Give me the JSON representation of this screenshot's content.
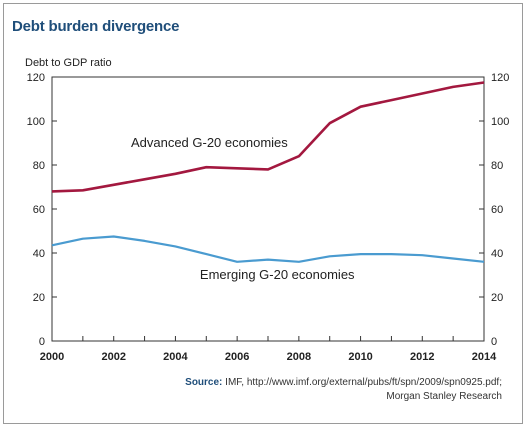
{
  "title": "Debt burden divergence",
  "source_label": "Source:",
  "source_lines": [
    "IMF, http://www.imf.org/external/pubs/ft/spn/2009/spn0925.pdf;",
    "Morgan Stanley Research"
  ],
  "chart_data": {
    "type": "line",
    "title": "Debt burden divergence",
    "ylabel": "Debt to GDP ratio",
    "xlabel": "",
    "xlim": [
      2000,
      2014
    ],
    "ylim": [
      0,
      120
    ],
    "x_ticks": [
      2000,
      2002,
      2004,
      2006,
      2008,
      2010,
      2012,
      2014
    ],
    "y_ticks": [
      0,
      20,
      40,
      60,
      80,
      100,
      120
    ],
    "grid": false,
    "secondary_y_axis": true,
    "series": [
      {
        "name": "Advanced G-20 economies",
        "color": "#a3183f",
        "points": [
          [
            2000,
            68
          ],
          [
            2001,
            68.5
          ],
          [
            2002,
            71
          ],
          [
            2003,
            73.5
          ],
          [
            2004,
            76
          ],
          [
            2005,
            79
          ],
          [
            2006,
            78.5
          ],
          [
            2007,
            78
          ],
          [
            2008,
            84
          ],
          [
            2009,
            99
          ],
          [
            2010,
            106.5
          ],
          [
            2011,
            109.5
          ],
          [
            2012,
            112.5
          ],
          [
            2013,
            115.5
          ],
          [
            2014,
            117.5
          ]
        ]
      },
      {
        "name": "Emerging G-20 economies",
        "color": "#4a9bd0",
        "points": [
          [
            2000,
            43.5
          ],
          [
            2001,
            46.5
          ],
          [
            2002,
            47.5
          ],
          [
            2003,
            45.5
          ],
          [
            2004,
            43
          ],
          [
            2005,
            39.5
          ],
          [
            2006,
            36
          ],
          [
            2007,
            37
          ],
          [
            2008,
            36
          ],
          [
            2009,
            38.5
          ],
          [
            2010,
            39.5
          ],
          [
            2011,
            39.5
          ],
          [
            2012,
            39
          ],
          [
            2013,
            37.5
          ],
          [
            2014,
            36
          ]
        ]
      }
    ],
    "annotations": [
      {
        "text": "Advanced G-20 economies",
        "x": 2005.1,
        "y": 90
      },
      {
        "text": "Emerging G-20 economies",
        "x": 2007.3,
        "y": 30
      }
    ]
  }
}
